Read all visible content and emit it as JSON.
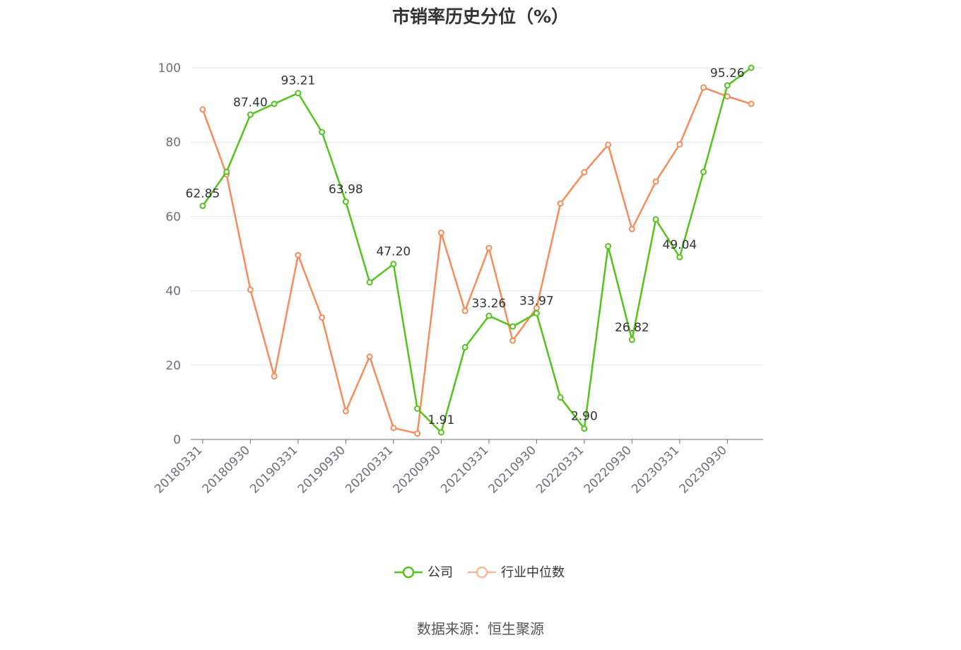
{
  "chart_data": {
    "type": "line",
    "title": "市销率历史分位（%）",
    "xlabel": "",
    "ylabel": "",
    "ylim": [
      0,
      100
    ],
    "yticks": [
      0,
      20,
      40,
      60,
      80,
      100
    ],
    "x": [
      "20180331",
      "20180630",
      "20180930",
      "20181231",
      "20190331",
      "20190630",
      "20190930",
      "20191231",
      "20200331",
      "20200630",
      "20200930",
      "20201231",
      "20210331",
      "20210630",
      "20210930",
      "20211231",
      "20220331",
      "20220630",
      "20220930",
      "20221231",
      "20230331",
      "20230630",
      "20230930",
      "20231231"
    ],
    "xtick_labels": [
      "20180331",
      "20180930",
      "20190331",
      "20190930",
      "20200331",
      "20200930",
      "20210331",
      "20210930",
      "20220331",
      "20220930",
      "20230331",
      "20230930"
    ],
    "grid": true,
    "legend": "bottom-center",
    "series": [
      {
        "name": "公司",
        "color": "#52c41a",
        "values": [
          62.85,
          72.0,
          87.4,
          90.3,
          93.21,
          82.7,
          63.98,
          42.3,
          47.2,
          8.3,
          1.91,
          24.8,
          33.26,
          30.4,
          33.97,
          11.3,
          2.9,
          52.0,
          26.82,
          59.2,
          49.04,
          72.0,
          95.26,
          100.0
        ],
        "labels": [
          {
            "index": 0,
            "text": "62.85"
          },
          {
            "index": 2,
            "text": "87.40"
          },
          {
            "index": 4,
            "text": "93.21"
          },
          {
            "index": 6,
            "text": "63.98"
          },
          {
            "index": 8,
            "text": "47.20"
          },
          {
            "index": 10,
            "text": "1.91"
          },
          {
            "index": 12,
            "text": "33.26"
          },
          {
            "index": 14,
            "text": "33.97"
          },
          {
            "index": 16,
            "text": "2.90"
          },
          {
            "index": 18,
            "text": "26.82"
          },
          {
            "index": 20,
            "text": "49.04"
          },
          {
            "index": 22,
            "text": "95.26"
          }
        ]
      },
      {
        "name": "行业中位数",
        "color": "#f58c5a",
        "values": [
          88.8,
          71.3,
          40.3,
          17.0,
          49.6,
          32.8,
          7.6,
          22.3,
          3.1,
          1.6,
          55.6,
          34.6,
          51.5,
          26.6,
          35.4,
          63.5,
          71.9,
          79.3,
          56.6,
          69.4,
          79.4,
          94.7,
          92.3,
          90.3
        ],
        "labels": []
      }
    ]
  },
  "source": "数据来源：恒生聚源"
}
